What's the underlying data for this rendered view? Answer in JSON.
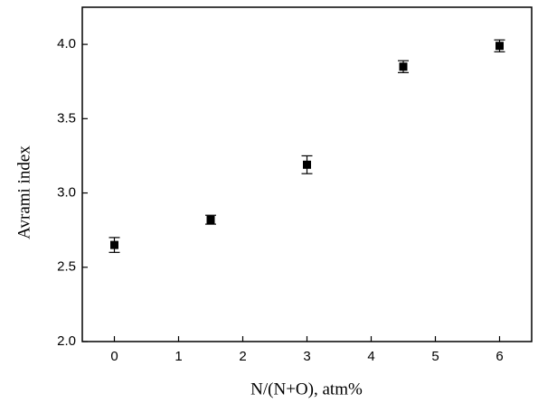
{
  "chart_data": {
    "type": "scatter",
    "x_label": "N/(N+O), atm%",
    "y_label": "Avrami index",
    "x": [
      0,
      1.5,
      3,
      4.5,
      6
    ],
    "values": [
      2.65,
      2.82,
      3.19,
      3.85,
      3.99
    ],
    "errors": [
      0.05,
      0.03,
      0.06,
      0.04,
      0.04
    ],
    "color": "#000000",
    "xlim": [
      -0.5,
      6.5
    ],
    "xticks": [
      0,
      1,
      2,
      3,
      4,
      5,
      6
    ],
    "ylim": [
      2.0,
      4.25
    ],
    "yticks": [
      {
        "value": 2.0,
        "label": "2.0"
      },
      {
        "value": 2.5,
        "label": "2.5"
      },
      {
        "value": 3.0,
        "label": "3.0"
      },
      {
        "value": 3.5,
        "label": "3.5"
      },
      {
        "value": 4.0,
        "label": "4.0"
      }
    ]
  }
}
